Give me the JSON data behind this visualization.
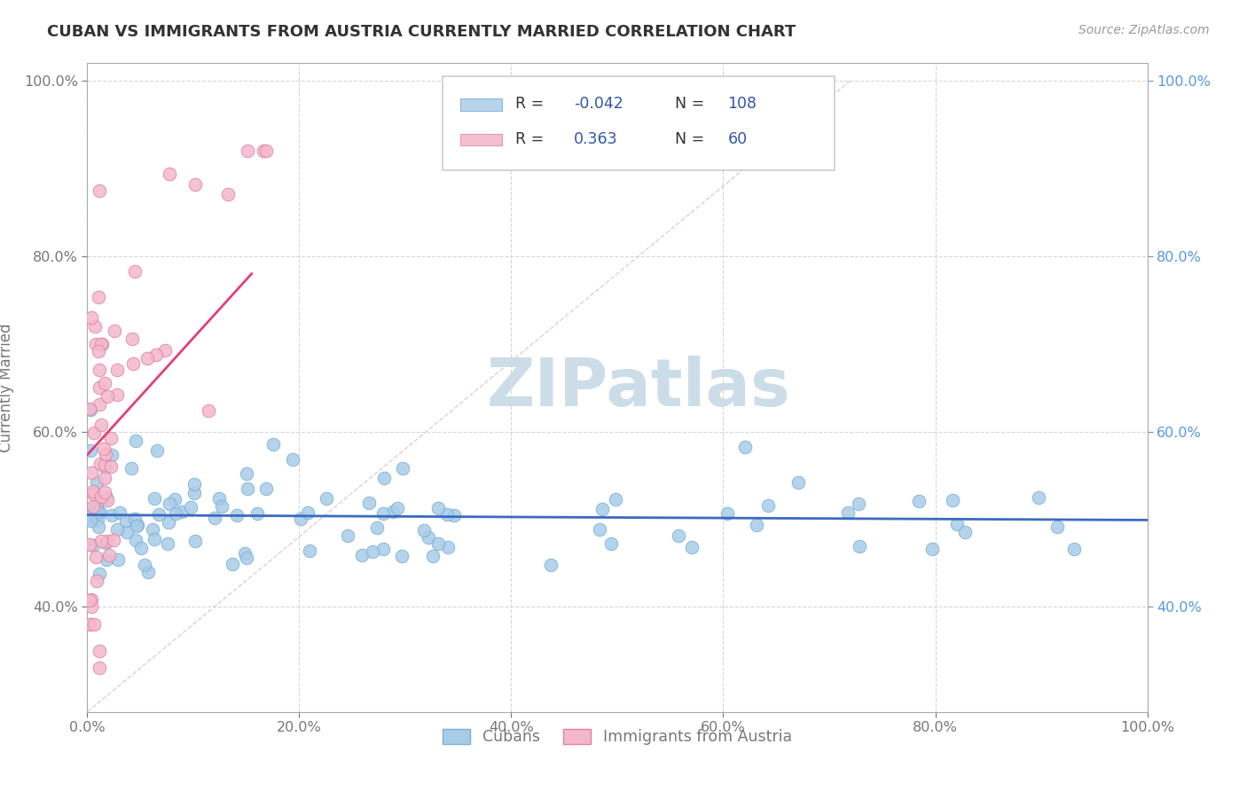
{
  "title": "CUBAN VS IMMIGRANTS FROM AUSTRIA CURRENTLY MARRIED CORRELATION CHART",
  "source": "Source: ZipAtlas.com",
  "ylabel": "Currently Married",
  "xlim": [
    0.0,
    1.0
  ],
  "ylim": [
    0.28,
    1.02
  ],
  "background_color": "#ffffff",
  "grid_color": "#cccccc",
  "watermark": "ZIPatlas",
  "cubans_color": "#a8cce8",
  "cubans_edge": "#7aafd4",
  "cubans_line_color": "#3a6bbf",
  "austria_color": "#f4b8cc",
  "austria_edge": "#e080a0",
  "austria_line_color": "#e0407a",
  "diagonal_color": "#dddddd",
  "right_tick_color": "#5599dd",
  "left_tick_color": "#777777",
  "title_color": "#333333",
  "source_color": "#999999",
  "legend_box_blue": "#b8d4ec",
  "legend_box_pink": "#f4c0d0",
  "legend_text_color": "#3355aa",
  "watermark_color": "#ccdde8",
  "xtick_positions": [
    0.0,
    0.2,
    0.4,
    0.6,
    0.8,
    1.0
  ],
  "xtick_labels": [
    "0.0%",
    "20.0%",
    "40.0%",
    "60.0%",
    "80.0%",
    "100.0%"
  ],
  "ytick_positions": [
    0.4,
    0.6,
    0.8,
    1.0
  ],
  "ytick_labels": [
    "40.0%",
    "60.0%",
    "80.0%",
    "100.0%"
  ],
  "cuba_N": 108,
  "austria_N": 60,
  "cuba_R": -0.042,
  "austria_R": 0.363
}
